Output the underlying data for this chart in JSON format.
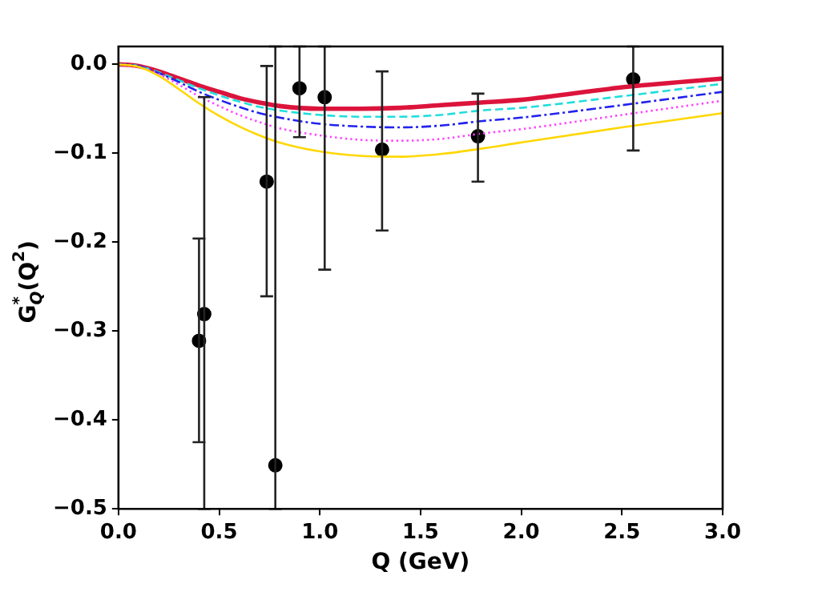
{
  "chart_data": {
    "type": "line",
    "xlabel": "Q (GeV)",
    "ylabel": "G$_{Q}$$^{*}$(Q$^{2}$)",
    "xlim": [
      0,
      3
    ],
    "xticks": [
      {
        "value": 0,
        "label": "0.0"
      },
      {
        "value": 0.5,
        "label": "0.5"
      },
      {
        "value": 1,
        "label": "1.0"
      },
      {
        "value": 1.5,
        "label": "1.5"
      },
      {
        "value": 2,
        "label": "2.0"
      },
      {
        "value": 2.5,
        "label": "2.5"
      },
      {
        "value": 3,
        "label": "3.0"
      }
    ],
    "ylim": [
      -0.5,
      0.02
    ],
    "yticks": [
      {
        "value": -0.5,
        "label": "−0.5"
      },
      {
        "value": -0.4,
        "label": "−0.4"
      },
      {
        "value": -0.3,
        "label": "−0.3"
      },
      {
        "value": -0.2,
        "label": "−0.2"
      },
      {
        "value": -0.1,
        "label": "−0.1"
      },
      {
        "value": 0,
        "label": "0.0"
      }
    ],
    "grid": false,
    "legend": false,
    "x": [
      0,
      0.1,
      0.2,
      0.3,
      0.4,
      0.5,
      0.6,
      0.7,
      0.8,
      1.0,
      1.2,
      1.4,
      1.6,
      1.8,
      2.0,
      2.5,
      3.0
    ],
    "series": [
      {
        "color": "#ffd700",
        "line_style": "solid",
        "marker": "none",
        "values": [
          0,
          -0.003,
          -0.013,
          -0.028,
          -0.044,
          -0.058,
          -0.07,
          -0.08,
          -0.088,
          -0.098,
          -0.103,
          -0.104,
          -0.101,
          -0.095,
          -0.088,
          -0.071,
          -0.055
        ]
      },
      {
        "color": "#ff44ff",
        "line_style": "dotted",
        "marker": "none",
        "values": [
          0,
          -0.003,
          -0.011,
          -0.023,
          -0.036,
          -0.047,
          -0.057,
          -0.065,
          -0.072,
          -0.08,
          -0.085,
          -0.086,
          -0.084,
          -0.078,
          -0.073,
          -0.057,
          -0.041
        ]
      },
      {
        "color": "#2222ee",
        "line_style": "dashdot",
        "marker": "none",
        "values": [
          0,
          -0.002,
          -0.01,
          -0.02,
          -0.031,
          -0.04,
          -0.048,
          -0.055,
          -0.06,
          -0.067,
          -0.07,
          -0.071,
          -0.069,
          -0.064,
          -0.06,
          -0.046,
          -0.031
        ]
      },
      {
        "color": "#22dddd",
        "line_style": "dashed",
        "marker": "none",
        "values": [
          0,
          -0.002,
          -0.009,
          -0.018,
          -0.027,
          -0.035,
          -0.042,
          -0.048,
          -0.052,
          -0.057,
          -0.059,
          -0.059,
          -0.057,
          -0.052,
          -0.049,
          -0.036,
          -0.022
        ]
      },
      {
        "color": "#dc143c",
        "line_style": "solid",
        "marker": "none",
        "values": [
          0,
          -0.002,
          -0.008,
          -0.016,
          -0.024,
          -0.031,
          -0.038,
          -0.043,
          -0.047,
          -0.05,
          -0.05,
          -0.049,
          -0.046,
          -0.043,
          -0.04,
          -0.026,
          -0.016
        ]
      },
      {
        "type": "scatter",
        "color": "#000000",
        "marker": "circle",
        "x": [
          0.4,
          0.426,
          0.736,
          0.779,
          0.899,
          1.024,
          1.309,
          1.785,
          2.556
        ],
        "values": [
          -0.311,
          -0.281,
          -0.132,
          -0.451,
          -0.027,
          -0.037,
          -0.096,
          -0.081,
          -0.017
        ],
        "errors": [
          [
            -0.425,
            -0.196
          ],
          [
            -0.5,
            -0.037
          ],
          [
            -0.261,
            -0.002
          ],
          [
            -0.5,
            0.02
          ],
          [
            -0.082,
            0.02
          ],
          [
            -0.231,
            0.02
          ],
          [
            -0.187,
            -0.008
          ],
          [
            -0.132,
            -0.033
          ],
          [
            -0.097,
            0.02
          ]
        ]
      }
    ]
  }
}
